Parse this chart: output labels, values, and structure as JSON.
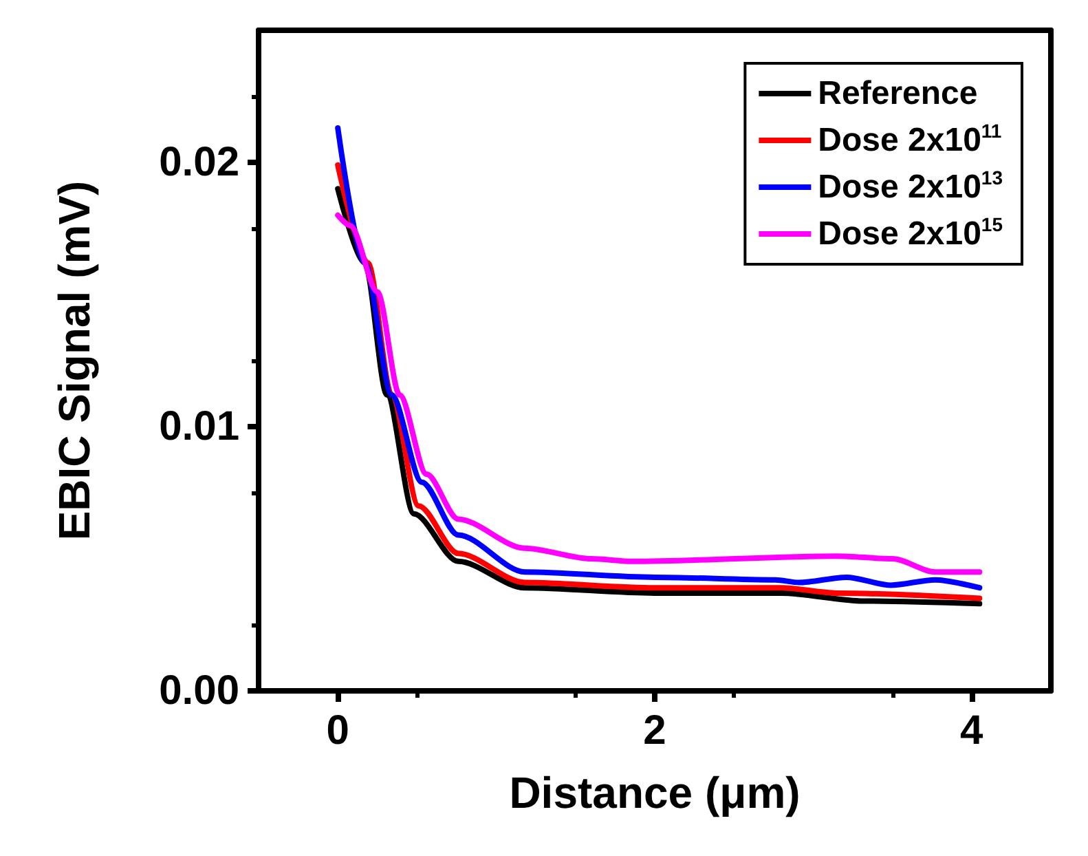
{
  "chart_data": {
    "type": "line",
    "xlabel": "Distance (μm)",
    "ylabel": "EBIC Signal (mV)",
    "xlim": [
      -0.5,
      4.5
    ],
    "xticks": [
      0,
      2,
      4
    ],
    "ylim": [
      0,
      0.025
    ],
    "yticks": [
      {
        "value": 0,
        "label": "0.00"
      },
      {
        "value": 0.01,
        "label": "0.01"
      },
      {
        "value": 0.02,
        "label": "0.02"
      }
    ],
    "grid": false,
    "legend": "top right",
    "marker": "none",
    "line_style": "solid",
    "series": [
      {
        "name": "Reference",
        "color": "#000000",
        "x": [
          0,
          0.17,
          0.31,
          0.48,
          0.76,
          1.18,
          2,
          2.8,
          3.32,
          4.05
        ],
        "values": [
          0.019,
          0.0162,
          0.0112,
          0.0067,
          0.0049,
          0.0039,
          0.0037,
          0.0037,
          0.0034,
          0.0033
        ]
      },
      {
        "name": "Dose 2x10$^{11}$",
        "color": "#ff0000",
        "x": [
          0,
          0.19,
          0.34,
          0.51,
          0.76,
          1.18,
          2,
          2.8,
          3.15,
          4.05
        ],
        "values": [
          0.0199,
          0.0162,
          0.0112,
          0.007,
          0.0052,
          0.0041,
          0.0039,
          0.0039,
          0.0037,
          0.0035
        ]
      },
      {
        "name": "Dose 2x10$^{13}$",
        "color": "#0000ff",
        "x": [
          0,
          0.17,
          0.34,
          0.53,
          0.76,
          1.18,
          2,
          2.76,
          2.91,
          3.21,
          3.49,
          3.77,
          4.05
        ],
        "values": [
          0.0213,
          0.0162,
          0.0112,
          0.0079,
          0.0059,
          0.0045,
          0.0043,
          0.0042,
          0.0041,
          0.0043,
          0.004,
          0.0042,
          0.0039
        ]
      },
      {
        "name": "Dose 2x10$^{15}$",
        "color": "#ff00ff",
        "x": [
          0,
          0.08,
          0.25,
          0.39,
          0.56,
          0.76,
          1.18,
          1.6,
          1.86,
          3.15,
          3.5,
          3.77,
          4.05
        ],
        "values": [
          0.018,
          0.0176,
          0.0151,
          0.0112,
          0.0082,
          0.0065,
          0.0054,
          0.005,
          0.0049,
          0.0051,
          0.005,
          0.0045,
          0.0045
        ]
      }
    ]
  }
}
